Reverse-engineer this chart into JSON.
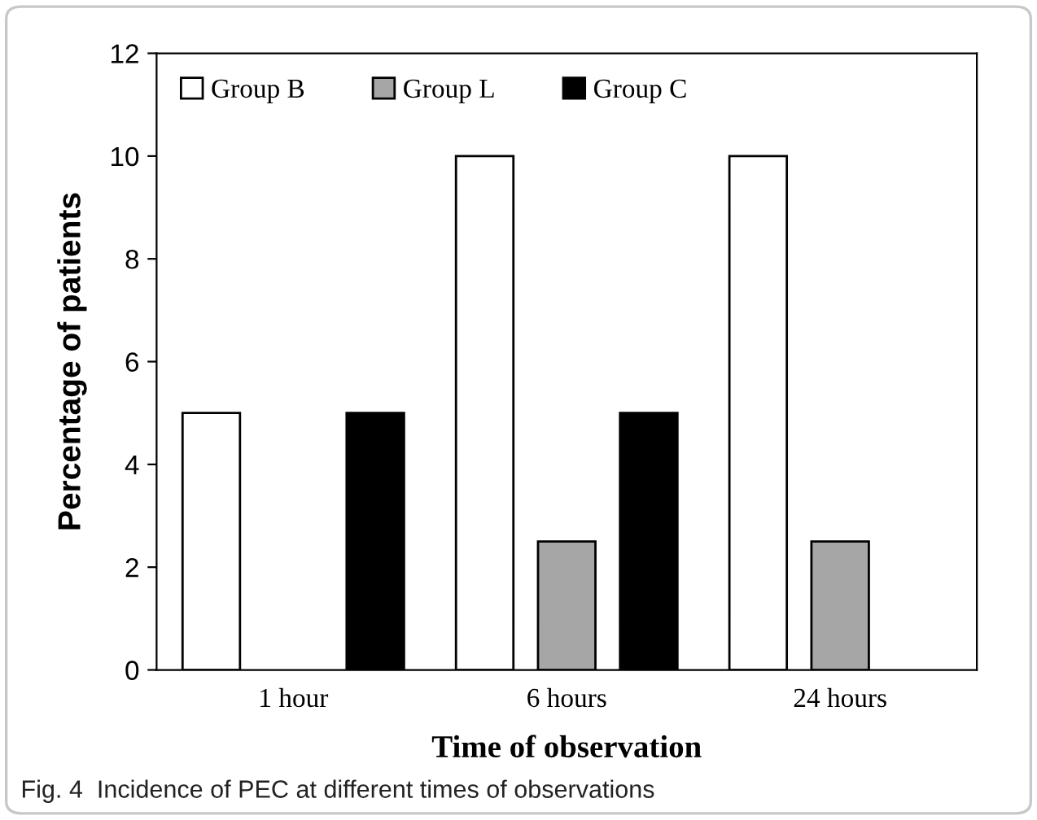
{
  "chart_data": {
    "type": "bar",
    "xlabel": "Time of observation",
    "ylabel": "Percentage of patients",
    "categories": [
      "1 hour",
      "6 hours",
      "24 hours"
    ],
    "series": [
      {
        "name": "Group B",
        "color": "#ffffff",
        "values": [
          5,
          10,
          10
        ]
      },
      {
        "name": "Group L",
        "color": "#a6a6a6",
        "values": [
          0,
          2.5,
          2.5
        ]
      },
      {
        "name": "Group C",
        "color": "#000000",
        "values": [
          5,
          5,
          0
        ]
      }
    ],
    "ylim": [
      0,
      12
    ],
    "yticks": [
      0,
      2,
      4,
      6,
      8,
      10,
      12
    ],
    "grid": false,
    "legend": "top left",
    "annotations": [
      "Fig. 4  Incidence of PEC at different times of observations"
    ]
  }
}
